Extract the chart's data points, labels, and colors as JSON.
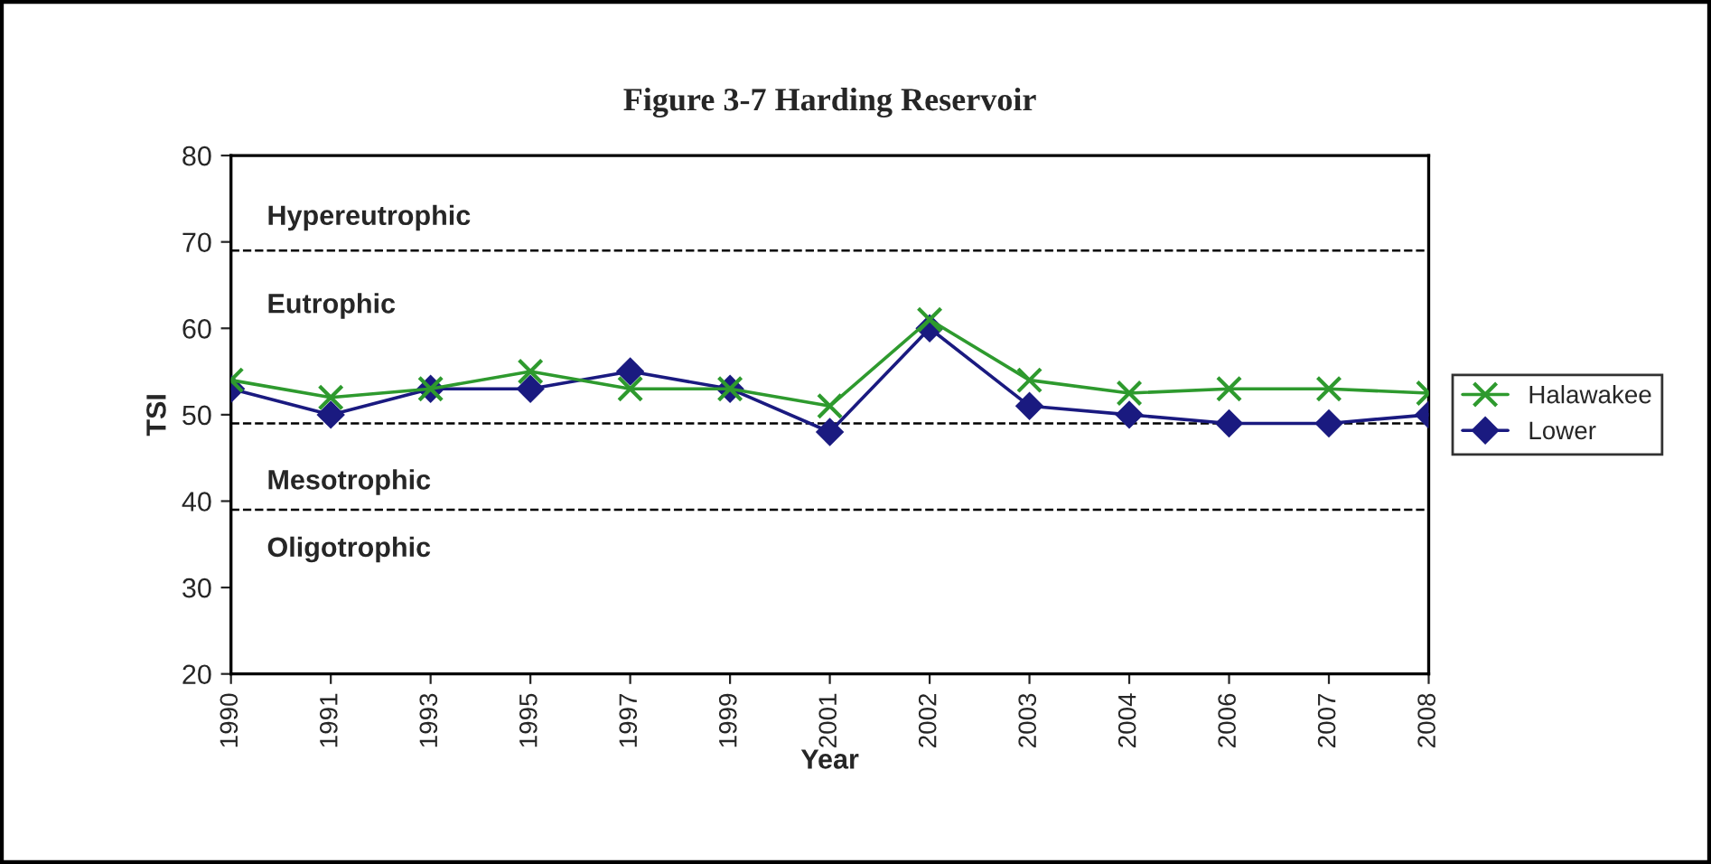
{
  "chart_data": {
    "type": "line",
    "title": "Figure 3-7 Harding Reservoir",
    "xlabel": "Year",
    "ylabel": "TSI",
    "categories": [
      "1990",
      "1991",
      "1993",
      "1995",
      "1997",
      "1999",
      "2001",
      "2002",
      "2003",
      "2004",
      "2006",
      "2007",
      "2008"
    ],
    "series": [
      {
        "name": "Halawakee",
        "color": "#2e9a2e",
        "marker": "cross",
        "values": [
          54,
          52,
          53,
          55,
          53,
          53,
          51,
          61,
          54,
          52.5,
          53,
          53,
          52.5
        ]
      },
      {
        "name": "Lower",
        "color": "#1a1a80",
        "marker": "diamond",
        "values": [
          53,
          50,
          53,
          53,
          55,
          53,
          48,
          60,
          51,
          50,
          49,
          49,
          50
        ]
      }
    ],
    "ylim": [
      20,
      80
    ],
    "yticks": [
      20,
      30,
      40,
      50,
      60,
      70,
      80
    ],
    "ref_lines": [
      {
        "axis": "y",
        "value": 69,
        "color": "#000000",
        "line_style": "dashed"
      },
      {
        "axis": "y",
        "value": 49,
        "color": "#000000",
        "line_style": "dashed"
      },
      {
        "axis": "y",
        "value": 39,
        "color": "#000000",
        "line_style": "dashed"
      }
    ],
    "annotations": [
      "Hypereutrophic",
      "Eutrophic",
      "Mesotrophic",
      "Oligotrophic"
    ],
    "grid": false,
    "legend": "right"
  }
}
